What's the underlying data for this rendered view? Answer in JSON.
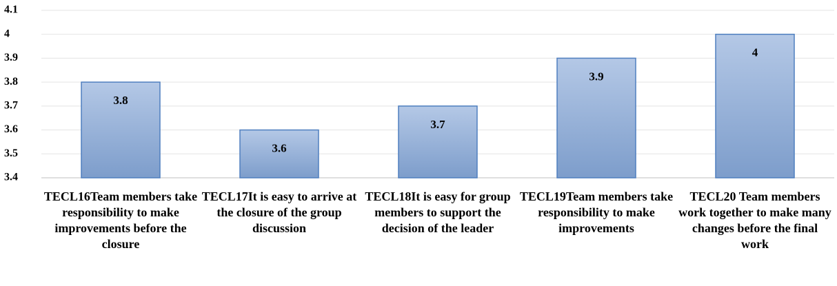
{
  "chart_data": {
    "type": "bar",
    "categories": [
      "TECL16Team members take responsibility to make improvements before the closure",
      "TECL17It is easy to arrive at the closure of the group discussion",
      "TECL18It is easy for group members to support the decision of the leader",
      "TECL19Team members take responsibility to make improvements",
      "TECL20 Team members work together to make many changes before the final work"
    ],
    "values": [
      3.8,
      3.6,
      3.7,
      3.9,
      4
    ],
    "color": "#8eabd6",
    "ylim": [
      3.4,
      4.1
    ],
    "yticks": [
      3.4,
      3.5,
      3.6,
      3.7,
      3.8,
      3.9,
      4,
      4.1
    ],
    "grid": true
  }
}
